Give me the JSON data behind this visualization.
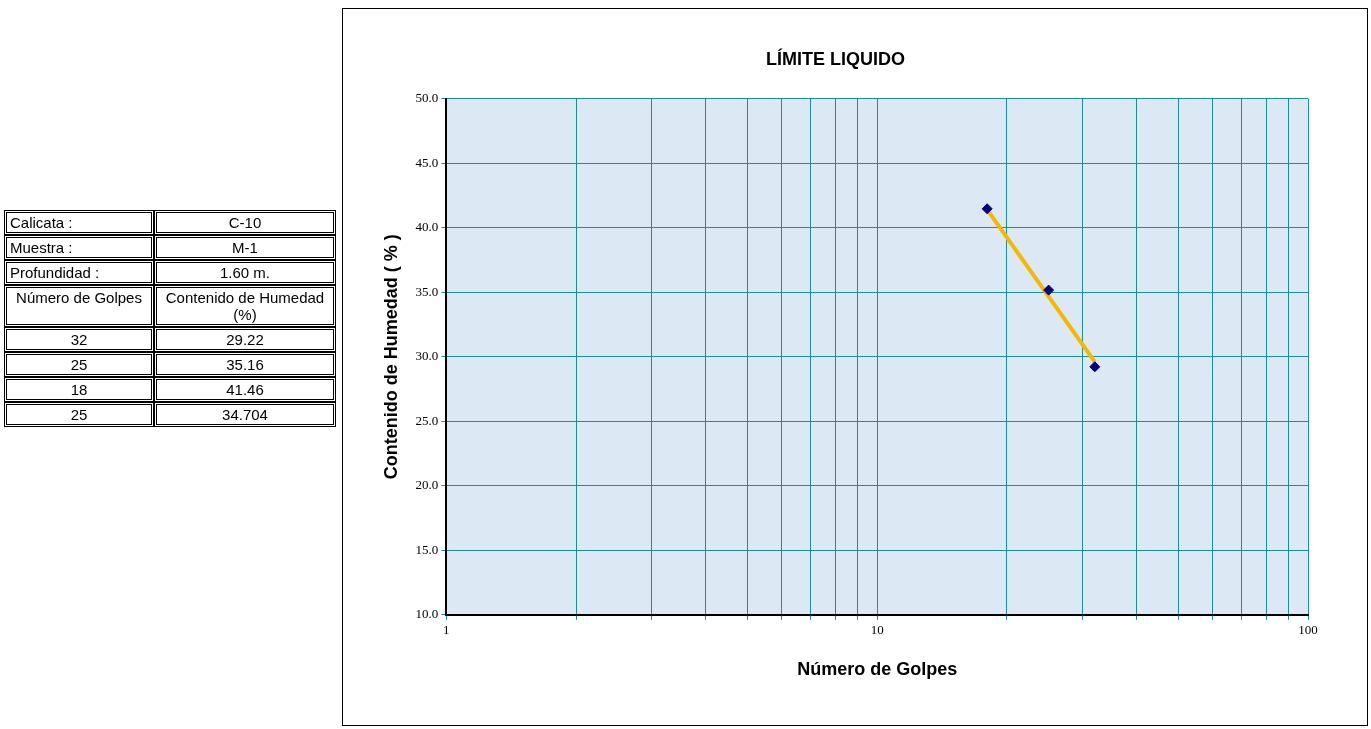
{
  "chart_data": {
    "type": "scatter",
    "title": "LÍMITE LIQUIDO",
    "xlabel": "Número de Golpes",
    "ylabel": "Contenido de Humedad ( % )",
    "annotations": [
      "Calicata :",
      "C-10",
      "Muestra :",
      "M-1",
      "Profundidad :",
      "1.60 m.",
      "Número de Golpes",
      "Contenido de Humedad (%)",
      "32",
      "29.22",
      "25",
      "35.16",
      "18",
      "41.46",
      "25",
      "34.704"
    ],
    "series": [
      {
        "type": "line",
        "color": "#f5b800",
        "marker": "none",
        "x": [
          18,
          32
        ],
        "values": [
          41.4,
          29.6
        ]
      },
      {
        "color": "#000080",
        "x": [
          32,
          25,
          18
        ],
        "values": [
          29.22,
          35.16,
          41.46
        ]
      }
    ],
    "log": "x",
    "xlim": [
      1,
      100
    ],
    "xticks": [
      1,
      {
        "value": 2,
        "label": null
      },
      {
        "value": 3,
        "label": null
      },
      {
        "value": 4,
        "label": null
      },
      {
        "value": 5,
        "label": null
      },
      {
        "value": 6,
        "label": null
      },
      {
        "value": 7,
        "label": null
      },
      {
        "value": 8,
        "label": null
      },
      {
        "value": 9,
        "label": null
      },
      10,
      {
        "value": 20,
        "label": null
      },
      {
        "value": 30,
        "label": null
      },
      {
        "value": 40,
        "label": null
      },
      {
        "value": 50,
        "label": null
      },
      {
        "value": 60,
        "label": null
      },
      {
        "value": 70,
        "label": null
      },
      {
        "value": 80,
        "label": null
      },
      {
        "value": 90,
        "label": null
      },
      100
    ],
    "ylim": [
      10,
      50
    ],
    "yticks": [
      {
        "value": 10,
        "label": "10.0"
      },
      {
        "value": 15,
        "label": "15.0"
      },
      {
        "value": 20,
        "label": "20.0"
      },
      {
        "value": 25,
        "label": "25.0"
      },
      {
        "value": 30,
        "label": "30.0"
      },
      {
        "value": 35,
        "label": "35.0"
      },
      {
        "value": 40,
        "label": "40.0"
      },
      {
        "value": 45,
        "label": "45.0"
      },
      {
        "value": 50,
        "label": "50.0"
      }
    ],
    "grid": true,
    "legend": false,
    "marker": "diamond",
    "line_style": "solid"
  }
}
